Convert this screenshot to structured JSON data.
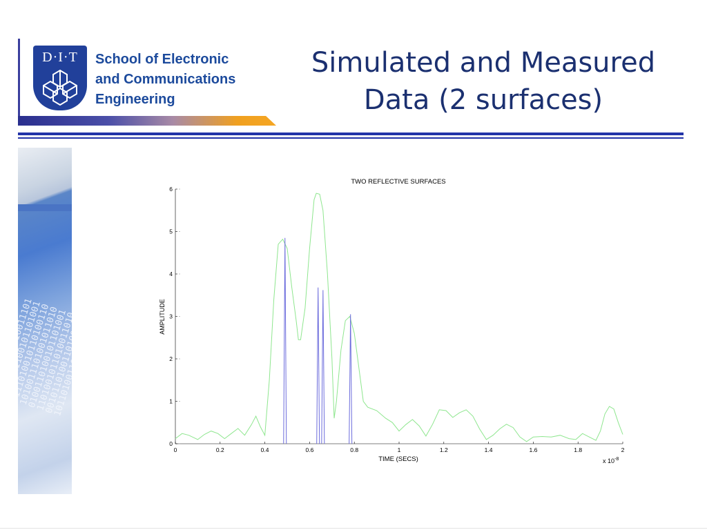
{
  "header": {
    "logo_text": "D·I·T",
    "school_lines": [
      "School of Electronic",
      "and Communications",
      "Engineering"
    ],
    "title_lines": [
      "Simulated and Measured",
      "Data (2 surfaces)"
    ]
  },
  "colors": {
    "title": "#1b3070",
    "divider": "#2233a8",
    "school_text": "#1c4a9c",
    "measured_series": "#8ee68e",
    "simulated_series": "#6b6bdc"
  },
  "icons": {
    "logo": "dit-crest-icon",
    "photo": "binary-digits-photo"
  },
  "chart_data": {
    "type": "line",
    "title": "TWO REFLECTIVE SURFACES",
    "xlabel": "TIME (SECS)",
    "ylabel": "AMPLITUDE",
    "x_multiplier_label": "x 10",
    "x_multiplier_exp": "-8",
    "xlim": [
      0,
      2
    ],
    "ylim": [
      0,
      6
    ],
    "x_ticks": [
      0,
      0.2,
      0.4,
      0.6,
      0.8,
      1,
      1.2,
      1.4,
      1.6,
      1.8,
      2
    ],
    "y_ticks": [
      0,
      1,
      2,
      3,
      4,
      5,
      6
    ],
    "grid": false,
    "series": [
      {
        "color": "#8ee68e",
        "points": [
          [
            0,
            0.12
          ],
          [
            0.03,
            0.24
          ],
          [
            0.06,
            0.2
          ],
          [
            0.1,
            0.1
          ],
          [
            0.13,
            0.22
          ],
          [
            0.16,
            0.3
          ],
          [
            0.19,
            0.24
          ],
          [
            0.22,
            0.12
          ],
          [
            0.25,
            0.24
          ],
          [
            0.28,
            0.36
          ],
          [
            0.31,
            0.2
          ],
          [
            0.34,
            0.45
          ],
          [
            0.36,
            0.65
          ],
          [
            0.38,
            0.4
          ],
          [
            0.4,
            0.2
          ],
          [
            0.42,
            1.5
          ],
          [
            0.44,
            3.4
          ],
          [
            0.46,
            4.7
          ],
          [
            0.48,
            4.82
          ],
          [
            0.5,
            4.6
          ],
          [
            0.52,
            3.7
          ],
          [
            0.54,
            2.9
          ],
          [
            0.55,
            2.45
          ],
          [
            0.56,
            2.45
          ],
          [
            0.58,
            3.2
          ],
          [
            0.6,
            4.6
          ],
          [
            0.62,
            5.75
          ],
          [
            0.63,
            5.9
          ],
          [
            0.645,
            5.88
          ],
          [
            0.66,
            5.5
          ],
          [
            0.68,
            4.0
          ],
          [
            0.7,
            2.0
          ],
          [
            0.71,
            0.6
          ],
          [
            0.72,
            1.0
          ],
          [
            0.74,
            2.2
          ],
          [
            0.76,
            2.9
          ],
          [
            0.78,
            3.0
          ],
          [
            0.8,
            2.6
          ],
          [
            0.82,
            1.8
          ],
          [
            0.84,
            1.0
          ],
          [
            0.86,
            0.86
          ],
          [
            0.9,
            0.78
          ],
          [
            0.94,
            0.6
          ],
          [
            0.97,
            0.5
          ],
          [
            1.0,
            0.3
          ],
          [
            1.03,
            0.45
          ],
          [
            1.06,
            0.57
          ],
          [
            1.09,
            0.42
          ],
          [
            1.12,
            0.18
          ],
          [
            1.15,
            0.46
          ],
          [
            1.18,
            0.8
          ],
          [
            1.21,
            0.78
          ],
          [
            1.24,
            0.62
          ],
          [
            1.27,
            0.73
          ],
          [
            1.3,
            0.8
          ],
          [
            1.33,
            0.65
          ],
          [
            1.36,
            0.35
          ],
          [
            1.39,
            0.1
          ],
          [
            1.42,
            0.2
          ],
          [
            1.45,
            0.35
          ],
          [
            1.48,
            0.46
          ],
          [
            1.51,
            0.38
          ],
          [
            1.54,
            0.16
          ],
          [
            1.57,
            0.05
          ],
          [
            1.6,
            0.16
          ],
          [
            1.64,
            0.17
          ],
          [
            1.68,
            0.16
          ],
          [
            1.72,
            0.2
          ],
          [
            1.76,
            0.12
          ],
          [
            1.79,
            0.1
          ],
          [
            1.82,
            0.24
          ],
          [
            1.85,
            0.16
          ],
          [
            1.88,
            0.08
          ],
          [
            1.9,
            0.3
          ],
          [
            1.92,
            0.7
          ],
          [
            1.94,
            0.88
          ],
          [
            1.96,
            0.82
          ],
          [
            1.98,
            0.5
          ],
          [
            2.0,
            0.22
          ]
        ]
      },
      {
        "color": "#6b6bdc",
        "type": "impulse",
        "points": [
          [
            0.49,
            4.85
          ],
          [
            0.638,
            3.68
          ],
          [
            0.66,
            3.62
          ],
          [
            0.783,
            3.05
          ]
        ]
      }
    ]
  }
}
